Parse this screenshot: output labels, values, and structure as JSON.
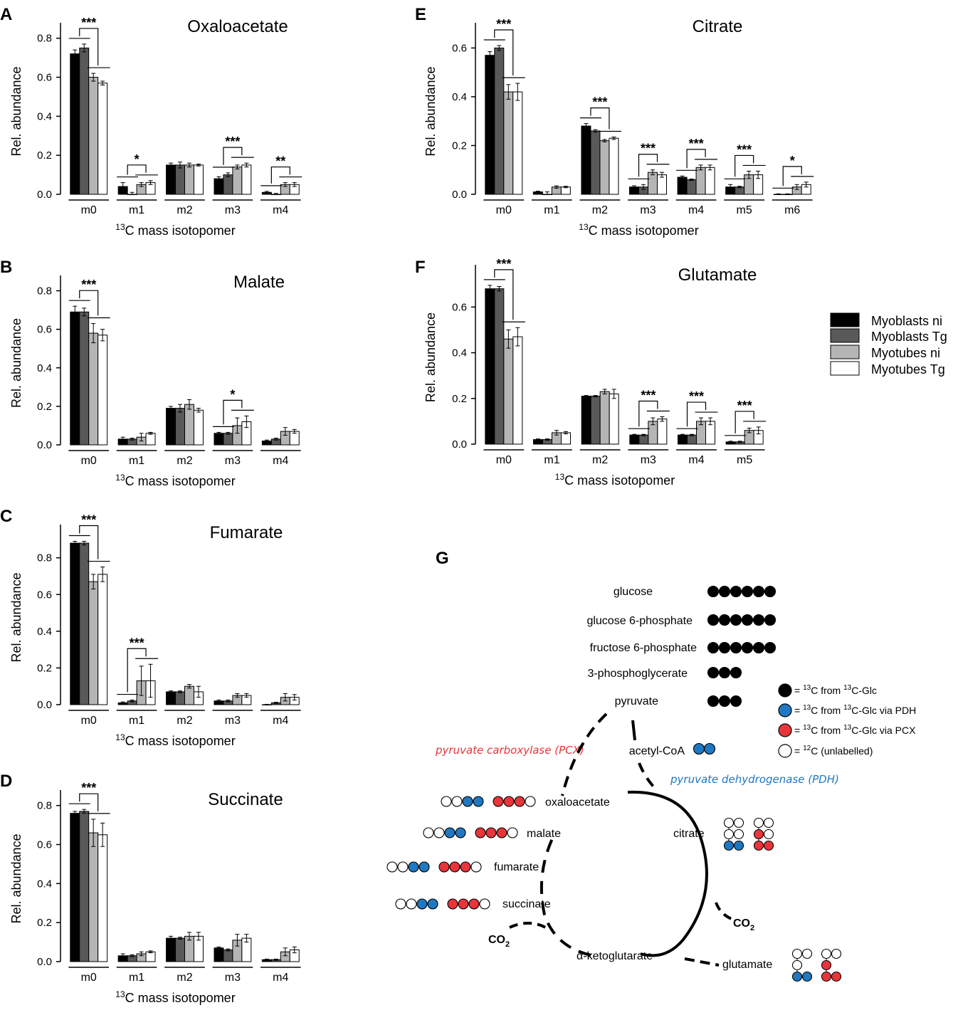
{
  "legend": {
    "items": [
      {
        "label": "Myoblasts ni",
        "color": "#000000"
      },
      {
        "label": "Myoblasts Tg",
        "color": "#595959"
      },
      {
        "label": "Myotubes ni",
        "color": "#b5b5b5"
      },
      {
        "label": "Myotubes Tg",
        "color": "#ffffff"
      }
    ]
  },
  "chart_data": [
    {
      "panel": "A",
      "type": "bar",
      "title": "Oxaloacetate",
      "xlabel_sup": "13",
      "xlabel": "C mass isotopomer",
      "ylabel": "Rel. abundance",
      "ylim": [
        0,
        0.85
      ],
      "yticks": [
        "0.0",
        "0.2",
        "0.4",
        "0.6",
        "0.8"
      ],
      "categories": [
        "m0",
        "m1",
        "m2",
        "m3",
        "m4"
      ],
      "series": [
        {
          "name": "Myoblasts ni",
          "values": [
            0.72,
            0.04,
            0.15,
            0.08,
            0.01
          ],
          "errors": [
            0.02,
            0.02,
            0.01,
            0.01,
            0.005
          ]
        },
        {
          "name": "Myoblasts Tg",
          "values": [
            0.75,
            0.0,
            0.15,
            0.1,
            0.0
          ],
          "errors": [
            0.02,
            0.01,
            0.015,
            0.01,
            0.005
          ]
        },
        {
          "name": "Myotubes ni",
          "values": [
            0.6,
            0.05,
            0.15,
            0.14,
            0.05
          ],
          "errors": [
            0.02,
            0.01,
            0.01,
            0.01,
            0.01
          ]
        },
        {
          "name": "Myotubes Tg",
          "values": [
            0.57,
            0.06,
            0.15,
            0.15,
            0.05
          ],
          "errors": [
            0.01,
            0.01,
            0.005,
            0.01,
            0.01
          ]
        }
      ],
      "annotations": [
        {
          "cat": 0,
          "label": "***",
          "dy": 0.05
        },
        {
          "cat": 1,
          "label": "*",
          "dy": 0.07
        },
        {
          "cat": 3,
          "label": "***",
          "dy": 0.04
        },
        {
          "cat": 4,
          "label": "**",
          "dy": 0.06
        }
      ]
    },
    {
      "panel": "B",
      "type": "bar",
      "title": "Malate",
      "xlabel_sup": "13",
      "xlabel": "C mass isotopomer",
      "ylabel": "Rel. abundance",
      "ylim": [
        0,
        0.85
      ],
      "yticks": [
        "0.0",
        "0.2",
        "0.4",
        "0.6",
        "0.8"
      ],
      "categories": [
        "m0",
        "m1",
        "m2",
        "m3",
        "m4"
      ],
      "series": [
        {
          "name": "Myoblasts ni",
          "values": [
            0.69,
            0.03,
            0.19,
            0.06,
            0.02
          ],
          "errors": [
            0.03,
            0.01,
            0.01,
            0.005,
            0.005
          ]
        },
        {
          "name": "Myoblasts Tg",
          "values": [
            0.69,
            0.03,
            0.19,
            0.06,
            0.03
          ],
          "errors": [
            0.02,
            0.005,
            0.02,
            0.005,
            0.005
          ]
        },
        {
          "name": "Myotubes ni",
          "values": [
            0.58,
            0.04,
            0.21,
            0.1,
            0.07
          ],
          "errors": [
            0.05,
            0.02,
            0.025,
            0.04,
            0.02
          ]
        },
        {
          "name": "Myotubes Tg",
          "values": [
            0.57,
            0.06,
            0.18,
            0.12,
            0.07
          ],
          "errors": [
            0.03,
            0.005,
            0.01,
            0.03,
            0.01
          ]
        }
      ],
      "annotations": [
        {
          "cat": 0,
          "label": "***",
          "dy": 0.05
        },
        {
          "cat": 3,
          "label": "*",
          "dy": 0.07
        }
      ]
    },
    {
      "panel": "C",
      "type": "bar",
      "title": "Fumarate",
      "xlabel_sup": "13",
      "xlabel": "C mass isotopomer",
      "ylabel": "Rel. abundance",
      "ylim": [
        0,
        0.95
      ],
      "yticks": [
        "0.0",
        "0.2",
        "0.4",
        "0.6",
        "0.8"
      ],
      "categories": [
        "m0",
        "m1",
        "m2",
        "m3",
        "m4"
      ],
      "series": [
        {
          "name": "Myoblasts ni",
          "values": [
            0.88,
            0.01,
            0.07,
            0.02,
            0.0
          ],
          "errors": [
            0.01,
            0.005,
            0.005,
            0.005,
            0.002
          ]
        },
        {
          "name": "Myoblasts Tg",
          "values": [
            0.88,
            0.02,
            0.07,
            0.02,
            0.01
          ],
          "errors": [
            0.01,
            0.005,
            0.005,
            0.005,
            0.003
          ]
        },
        {
          "name": "Myotubes ni",
          "values": [
            0.67,
            0.13,
            0.1,
            0.05,
            0.04
          ],
          "errors": [
            0.04,
            0.08,
            0.01,
            0.01,
            0.02
          ]
        },
        {
          "name": "Myotubes Tg",
          "values": [
            0.71,
            0.13,
            0.07,
            0.05,
            0.04
          ],
          "errors": [
            0.04,
            0.09,
            0.03,
            0.01,
            0.015
          ]
        }
      ],
      "annotations": [
        {
          "cat": 0,
          "label": "***",
          "dy": 0.05
        },
        {
          "cat": 1,
          "label": "***",
          "dy": 0.06
        }
      ]
    },
    {
      "panel": "D",
      "type": "bar",
      "title": "Succinate",
      "xlabel_sup": "13",
      "xlabel": "C mass isotopomer",
      "ylabel": "Rel. abundance",
      "ylim": [
        0,
        0.85
      ],
      "yticks": [
        "0.0",
        "0.2",
        "0.4",
        "0.6",
        "0.8"
      ],
      "categories": [
        "m0",
        "m1",
        "m2",
        "m3",
        "m4"
      ],
      "series": [
        {
          "name": "Myoblasts ni",
          "values": [
            0.76,
            0.03,
            0.12,
            0.07,
            0.01
          ],
          "errors": [
            0.01,
            0.01,
            0.01,
            0.005,
            0.003
          ]
        },
        {
          "name": "Myoblasts Tg",
          "values": [
            0.77,
            0.03,
            0.12,
            0.06,
            0.01
          ],
          "errors": [
            0.01,
            0.005,
            0.005,
            0.005,
            0.003
          ]
        },
        {
          "name": "Myotubes ni",
          "values": [
            0.66,
            0.04,
            0.13,
            0.11,
            0.05
          ],
          "errors": [
            0.07,
            0.01,
            0.02,
            0.03,
            0.02
          ]
        },
        {
          "name": "Myotubes Tg",
          "values": [
            0.65,
            0.05,
            0.13,
            0.12,
            0.06
          ],
          "errors": [
            0.06,
            0.005,
            0.02,
            0.02,
            0.015
          ]
        }
      ],
      "annotations": [
        {
          "cat": 0,
          "label": "***",
          "dy": 0.05
        }
      ]
    },
    {
      "panel": "E",
      "type": "bar",
      "title": "Citrate",
      "xlabel_sup": "13",
      "xlabel": "C mass isotopomer",
      "ylabel": "Rel. abundance",
      "ylim": [
        0,
        0.68
      ],
      "yticks": [
        "0.0",
        "0.2",
        "0.4",
        "0.6"
      ],
      "categories": [
        "m0",
        "m1",
        "m2",
        "m3",
        "m4",
        "m5",
        "m6"
      ],
      "series": [
        {
          "name": "Myoblasts ni",
          "values": [
            0.57,
            0.01,
            0.28,
            0.03,
            0.07,
            0.03,
            0.0
          ],
          "errors": [
            0.015,
            0.003,
            0.01,
            0.005,
            0.005,
            0.01,
            0.002
          ]
        },
        {
          "name": "Myoblasts Tg",
          "values": [
            0.6,
            0.0,
            0.26,
            0.03,
            0.06,
            0.03,
            0.0
          ],
          "errors": [
            0.01,
            0.01,
            0.005,
            0.01,
            0.003,
            0.003,
            0.002
          ]
        },
        {
          "name": "Myotubes ni",
          "values": [
            0.42,
            0.03,
            0.22,
            0.09,
            0.11,
            0.08,
            0.03
          ],
          "errors": [
            0.03,
            0.005,
            0.005,
            0.01,
            0.01,
            0.015,
            0.01
          ]
        },
        {
          "name": "Myotubes Tg",
          "values": [
            0.42,
            0.03,
            0.23,
            0.08,
            0.11,
            0.08,
            0.04
          ],
          "errors": [
            0.035,
            0.003,
            0.005,
            0.01,
            0.01,
            0.015,
            0.01
          ]
        }
      ],
      "annotations": [
        {
          "cat": 0,
          "label": "***",
          "dy": 0.04
        },
        {
          "cat": 2,
          "label": "***",
          "dy": 0.04
        },
        {
          "cat": 3,
          "label": "***",
          "dy": 0.05
        },
        {
          "cat": 4,
          "label": "***",
          "dy": 0.04
        },
        {
          "cat": 5,
          "label": "***",
          "dy": 0.04
        },
        {
          "cat": 6,
          "label": "*",
          "dy": 0.04
        }
      ]
    },
    {
      "panel": "F",
      "type": "bar",
      "title": "Glutamate",
      "xlabel_sup": "13",
      "xlabel": "C mass isotopomer",
      "ylabel": "Rel. abundance",
      "ylim": [
        0,
        0.76
      ],
      "yticks": [
        "0.0",
        "0.2",
        "0.4",
        "0.6"
      ],
      "categories": [
        "m0",
        "m1",
        "m2",
        "m3",
        "m4",
        "m5"
      ],
      "series": [
        {
          "name": "Myoblasts ni",
          "values": [
            0.68,
            0.02,
            0.21,
            0.04,
            0.04,
            0.01
          ],
          "errors": [
            0.015,
            0.003,
            0.003,
            0.003,
            0.003,
            0.003
          ]
        },
        {
          "name": "Myoblasts Tg",
          "values": [
            0.68,
            0.02,
            0.21,
            0.04,
            0.04,
            0.01
          ],
          "errors": [
            0.01,
            0.003,
            0.003,
            0.003,
            0.003,
            0.003
          ]
        },
        {
          "name": "Myotubes ni",
          "values": [
            0.46,
            0.05,
            0.23,
            0.1,
            0.1,
            0.06
          ],
          "errors": [
            0.04,
            0.01,
            0.01,
            0.015,
            0.015,
            0.01
          ]
        },
        {
          "name": "Myotubes Tg",
          "values": [
            0.47,
            0.05,
            0.22,
            0.11,
            0.1,
            0.06
          ],
          "errors": [
            0.04,
            0.005,
            0.02,
            0.01,
            0.015,
            0.015
          ]
        }
      ],
      "annotations": [
        {
          "cat": 0,
          "label": "***",
          "dy": 0.04
        },
        {
          "cat": 3,
          "label": "***",
          "dy": 0.04
        },
        {
          "cat": 4,
          "label": "***",
          "dy": 0.04
        },
        {
          "cat": 5,
          "label": "***",
          "dy": 0.04
        }
      ]
    }
  ],
  "diagram": {
    "panel": "G",
    "upper_metabolites": [
      {
        "name": "glucose",
        "dots": "BBBBBB"
      },
      {
        "name": "glucose 6-phosphate",
        "dots": "BBBBBB"
      },
      {
        "name": "fructose 6-phosphate",
        "dots": "BBBBBB"
      },
      {
        "name": "3-phosphoglycerate",
        "dots": "BBB"
      },
      {
        "name": "pyruvate",
        "dots": "BBB"
      }
    ],
    "acetyl_coa": {
      "name": "acetyl-CoA",
      "dots": "UU"
    },
    "pcx_label": "pyruvate carboxylase (PCX)",
    "pdh_label": "pyruvate dehydrogenase (PDH)",
    "cycle_metabolites": [
      {
        "name": "oxaloacetate",
        "dots_pdh": "WWUU",
        "dots_pcx": "RRRW"
      },
      {
        "name": "malate",
        "dots_pdh": "WWUU",
        "dots_pcx": "RRRW"
      },
      {
        "name": "fumarate",
        "dots_pdh": "WWUU",
        "dots_pcx": "RRRW"
      },
      {
        "name": "succinate",
        "dots_pdh": "WWUU",
        "dots_pcx": "RRRW"
      }
    ],
    "citrate": "citrate",
    "akg": "α-ketoglutarate",
    "glutamate": "glutamate",
    "co2": "CO",
    "co2_sub": "2",
    "key": [
      {
        "color": "#000000",
        "text_pre": "= ",
        "sup": "13",
        "text_mid": "C from ",
        "sup2": "13",
        "text_post": "C-Glc"
      },
      {
        "color": "#1f78c1",
        "text_pre": "= ",
        "sup": "13",
        "text_mid": "C from ",
        "sup2": "13",
        "text_post": "C-Glc via PDH"
      },
      {
        "color": "#e8353a",
        "text_pre": "= ",
        "sup": "13",
        "text_mid": "C from ",
        "sup2": "13",
        "text_post": "C-Glc via PCX"
      },
      {
        "color": "#ffffff",
        "text_pre": "= ",
        "sup": "12",
        "text_mid": "C (unlabelled)",
        "sup2": "",
        "text_post": ""
      }
    ],
    "colors": {
      "black": "#000000",
      "blue": "#1f78c1",
      "red": "#e8353a",
      "white": "#ffffff",
      "pcx": "#e8353a",
      "pdh": "#1f78c1"
    }
  }
}
